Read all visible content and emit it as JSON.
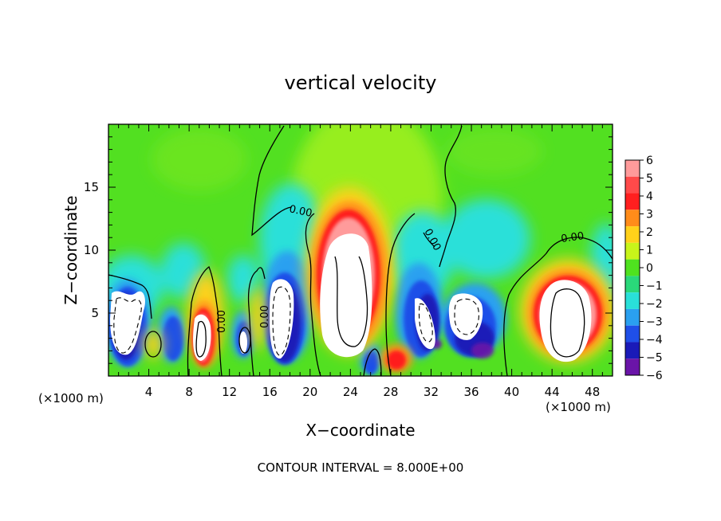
{
  "chart_data": {
    "type": "heatmap",
    "title": "vertical velocity",
    "xlabel": "X−coordinate",
    "ylabel": "Z−coordinate",
    "x_unit_left": "(×1000 m)",
    "x_unit_right": "(×1000 m)",
    "footer": "CONTOUR INTERVAL = 8.000E+00",
    "xlim": [
      0,
      50
    ],
    "ylim": [
      0,
      20
    ],
    "x_ticks": [
      4,
      8,
      12,
      16,
      20,
      24,
      28,
      32,
      36,
      40,
      44,
      48
    ],
    "y_ticks": [
      5,
      10,
      15
    ],
    "colorbar": {
      "ticks": [
        "6",
        "5",
        "4",
        "3",
        "2",
        "1",
        "0",
        "−1",
        "−2",
        "−3",
        "−4",
        "−5",
        "−6"
      ],
      "colors": [
        "#ff9b9b",
        "#ff4a4a",
        "#ff1f1f",
        "#ff8c1a",
        "#ffd11a",
        "#c8f51a",
        "#4fe21f",
        "#2ad87a",
        "#29e0d9",
        "#2aa0f0",
        "#1f4fe8",
        "#1a1ab8",
        "#6a14a8"
      ],
      "max_color": "#ffffff"
    },
    "contour_labels": [
      "0.00",
      "0.00",
      "0.00",
      "0.00",
      "0.00",
      "0.00"
    ],
    "grid": false,
    "legend_position": "right"
  }
}
